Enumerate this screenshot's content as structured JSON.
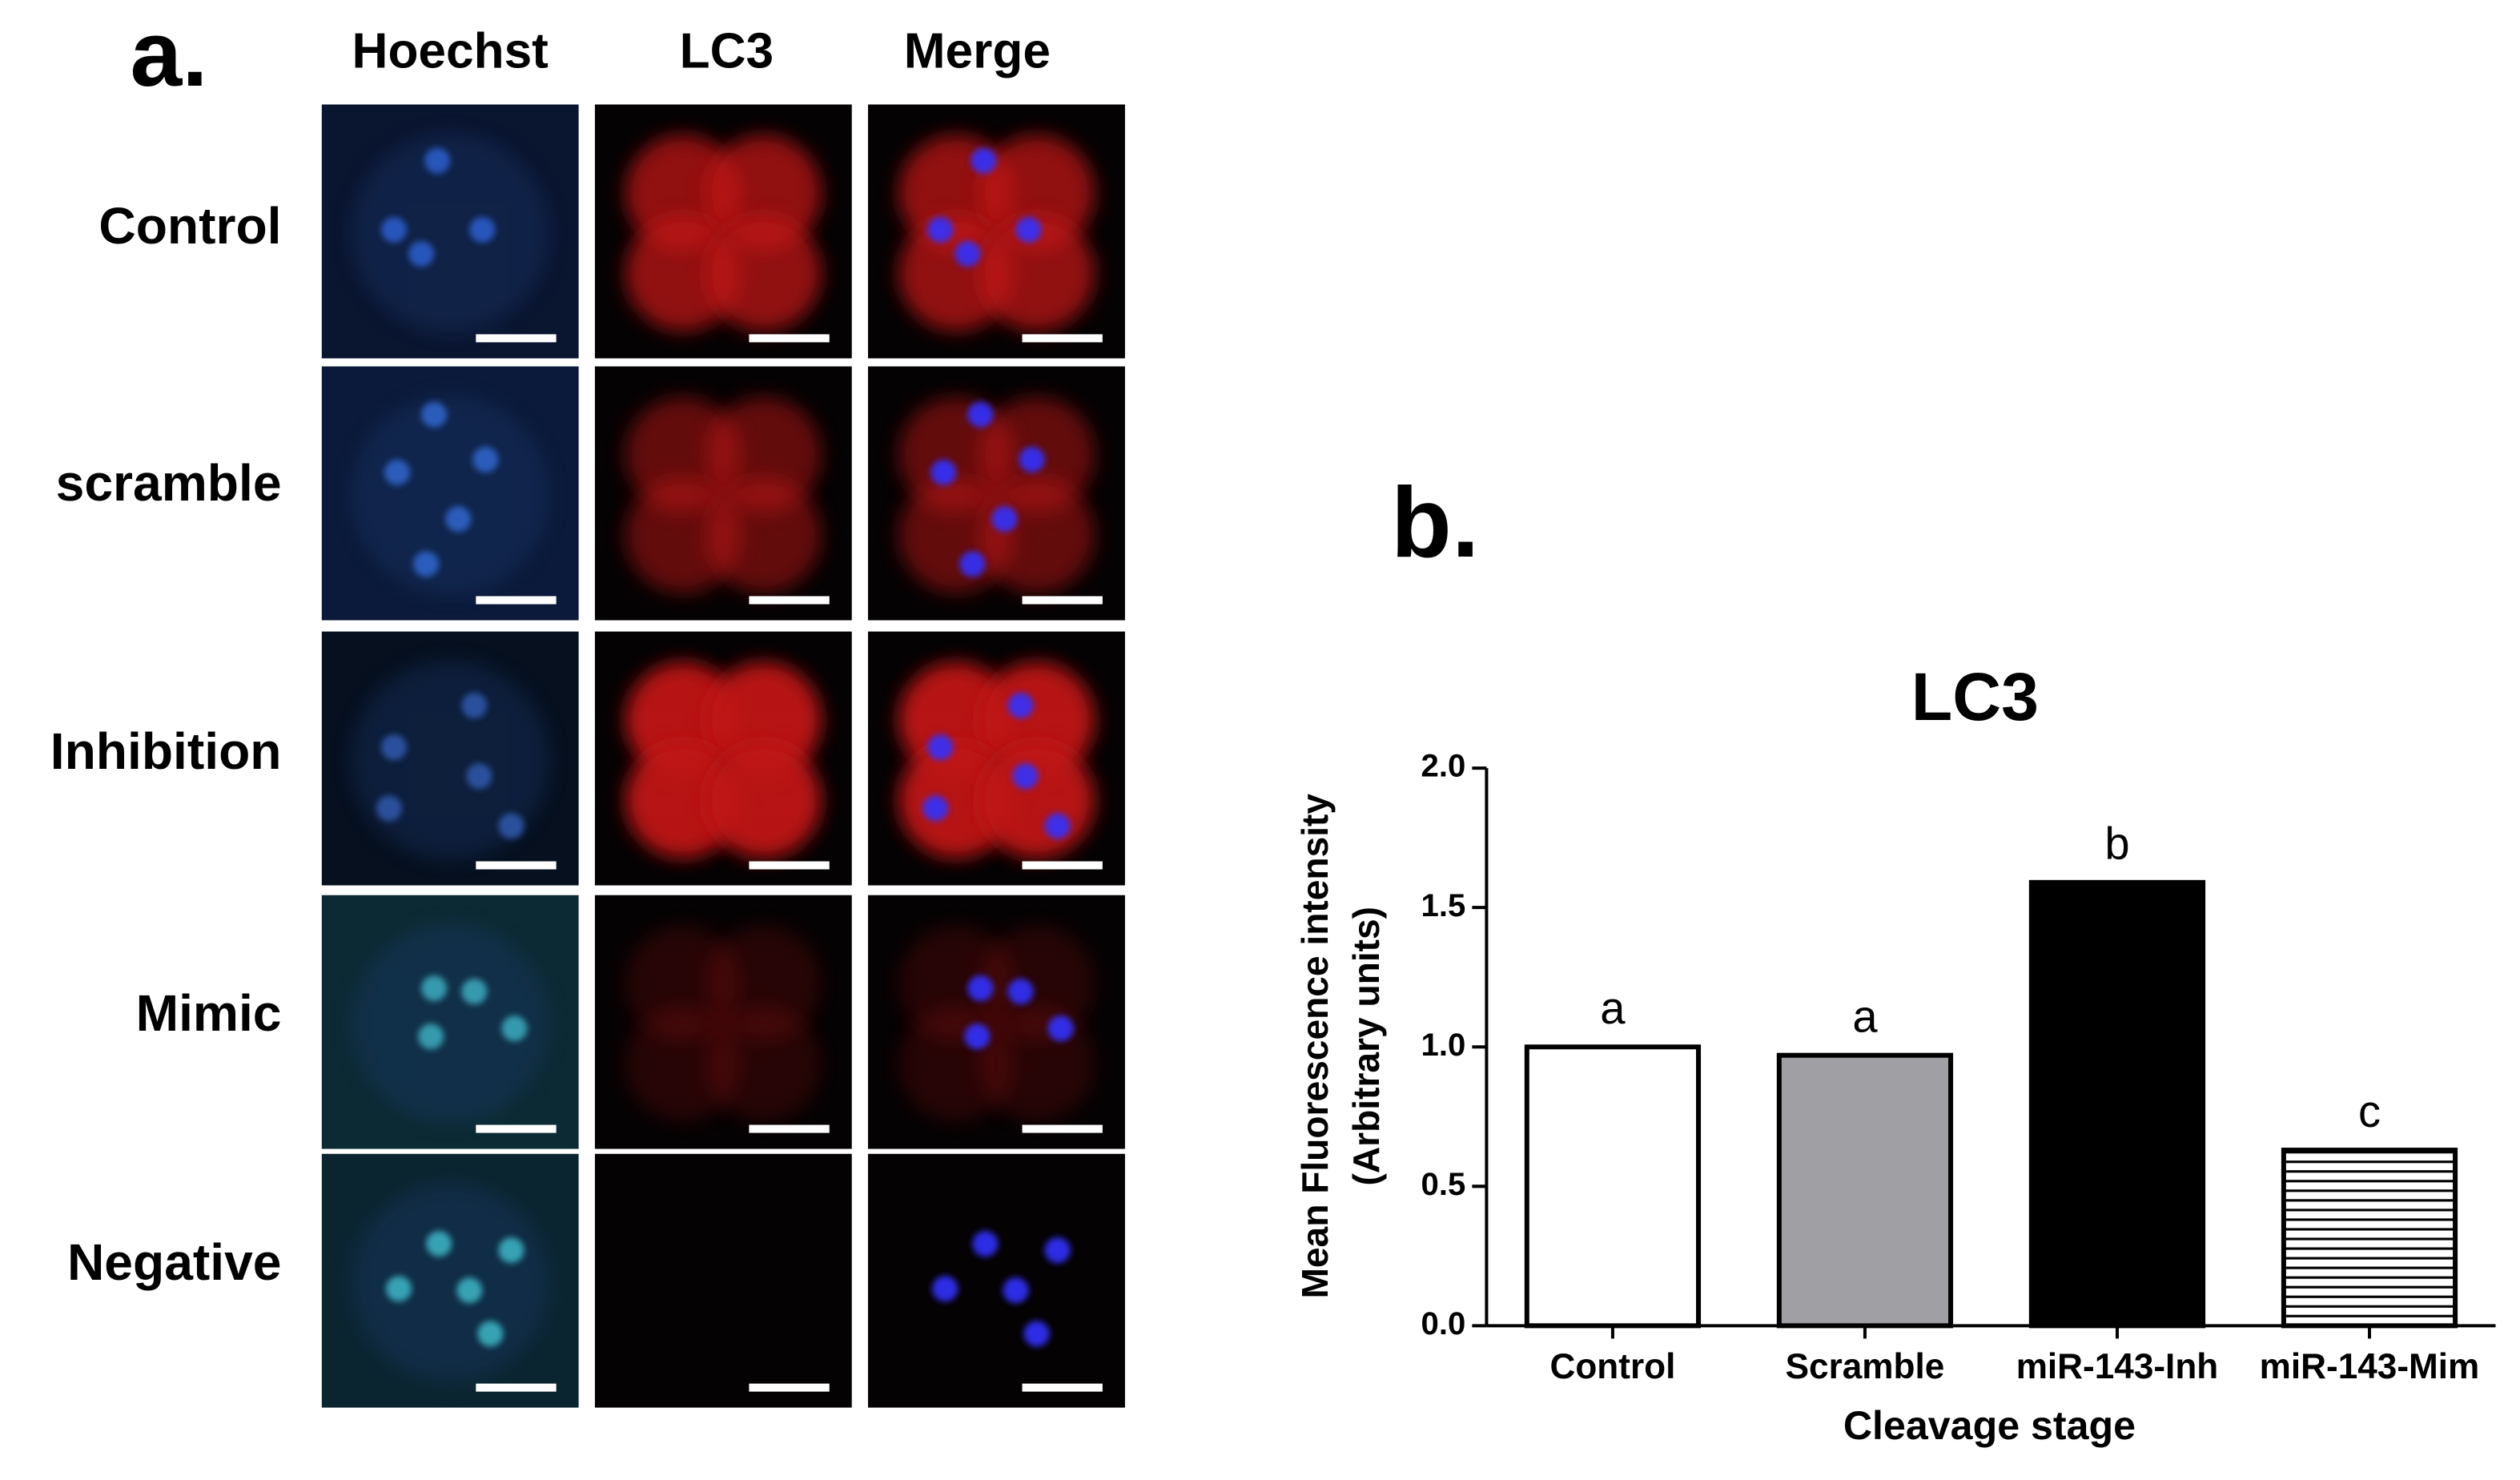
{
  "panel_labels": [
    "a.",
    "b."
  ],
  "panel_a": {
    "columns": [
      "Hoechst",
      "LC3",
      "Merge"
    ],
    "rows": [
      "Control",
      "scramble",
      "Inhibition",
      "Mimic",
      "Negative"
    ]
  },
  "chart_data": {
    "type": "bar",
    "title": "LC3",
    "ylabel": [
      "Mean Fluorescence intensity",
      "(Arbitrary units)"
    ],
    "xlabel": "Cleavage stage",
    "categories": [
      "Control",
      "Scramble",
      "miR-143-Inh",
      "miR-143-Mim"
    ],
    "values": [
      1.0,
      0.97,
      1.59,
      0.63
    ],
    "annotations": [
      "a",
      "a",
      "b",
      "c"
    ],
    "colors": [
      "#ffffff",
      "#a0a0a4",
      "#000000",
      "#ffffff"
    ],
    "hatch": [
      false,
      false,
      false,
      true
    ],
    "ylim": [
      0,
      2
    ],
    "yticks": [
      {
        "value": 0,
        "label": "0.0"
      },
      {
        "value": 0.5,
        "label": "0.5"
      },
      {
        "value": 1,
        "label": "1.0"
      },
      {
        "value": 1.5,
        "label": "1.5"
      },
      {
        "value": 2,
        "label": "2.0"
      }
    ],
    "grid": false
  }
}
